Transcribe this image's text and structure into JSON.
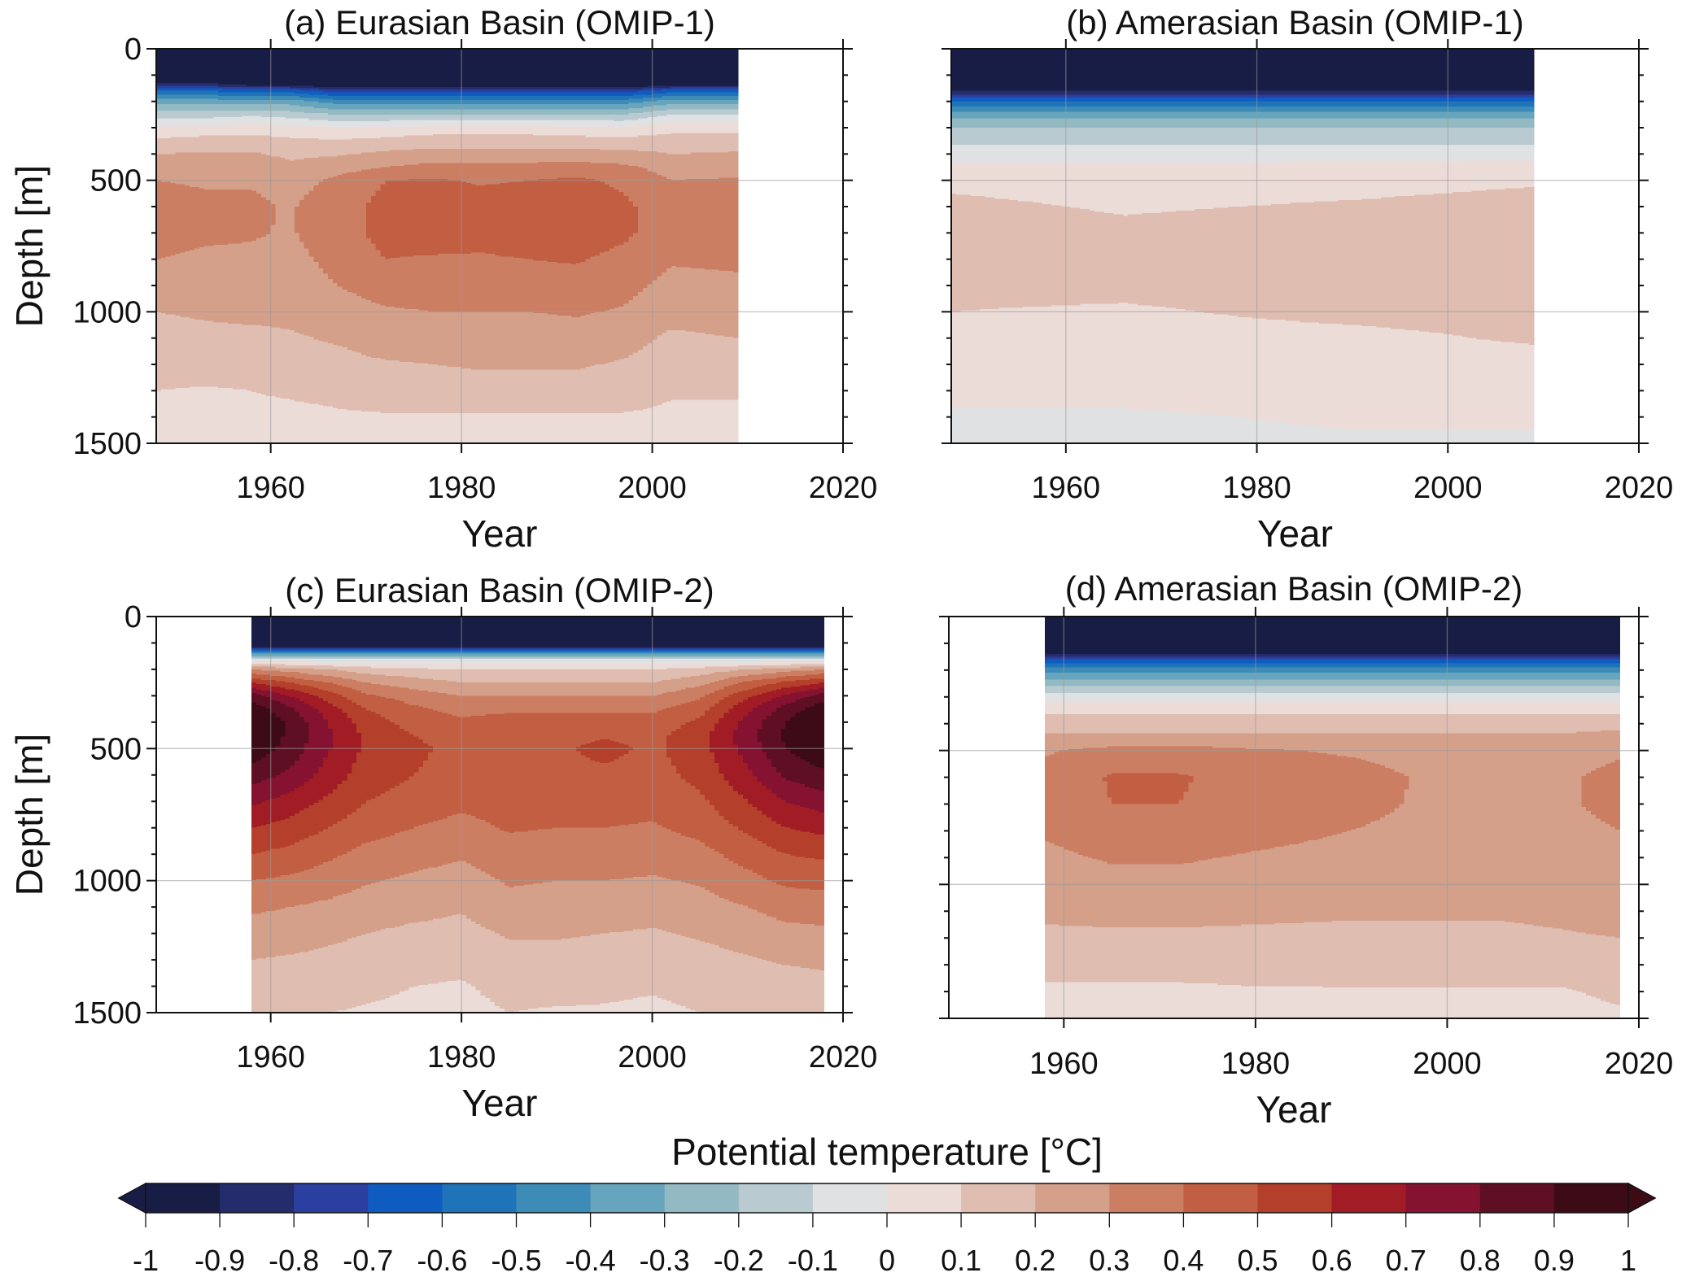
{
  "colorbar": {
    "label": "Potential temperature [°C]",
    "levels": [
      -1,
      -0.9,
      -0.8,
      -0.7,
      -0.6,
      -0.5,
      -0.4,
      -0.3,
      -0.2,
      -0.1,
      0,
      0.1,
      0.2,
      0.3,
      0.4,
      0.5,
      0.6,
      0.7,
      0.8,
      0.9,
      1
    ],
    "tick_labels": [
      "-1",
      "-0.9",
      "-0.8",
      "-0.7",
      "-0.6",
      "-0.5",
      "-0.4",
      "-0.3",
      "-0.2",
      "-0.1",
      "0",
      "0.1",
      "0.2",
      "0.3",
      "0.4",
      "0.5",
      "0.6",
      "0.7",
      "0.8",
      "0.9",
      "1"
    ],
    "colors": [
      "#181d45",
      "#242c6b",
      "#2b3fa0",
      "#0f5cc0",
      "#1f73b9",
      "#3d8cb8",
      "#66a5bd",
      "#93b9c3",
      "#b9cbd1",
      "#e0e1e3",
      "#ebdcd8",
      "#dfbdb1",
      "#d5a08a",
      "#cc7e63",
      "#c25f43",
      "#b43f2a",
      "#a11c25",
      "#841230",
      "#5f0f23",
      "#3d0b15"
    ],
    "extend": "both"
  },
  "chart_data": [
    {
      "type": "heatmap",
      "title": "(a) Eurasian Basin (OMIP-1)",
      "xlabel": "Year",
      "ylabel": "Depth [m]",
      "xlim": [
        1948,
        2020
      ],
      "ylim": [
        1500,
        0
      ],
      "xticks": [
        "1960",
        "1980",
        "2000",
        "2020"
      ],
      "yticks": [
        "0",
        "500",
        "1000",
        "1500"
      ],
      "grid": true,
      "depths": [
        0,
        50,
        100,
        130,
        160,
        200,
        250,
        300,
        350,
        400,
        450,
        500,
        600,
        700,
        800,
        900,
        1000,
        1100,
        1200,
        1300,
        1400,
        1500
      ],
      "years": [
        1948,
        1953,
        1958,
        1962,
        1967,
        1972,
        1977,
        1982,
        1987,
        1992,
        1997,
        2002,
        2009
      ],
      "values": [
        [
          -1.6,
          -1.6,
          -1.3,
          -0.9,
          -0.6,
          -0.35,
          -0.15,
          0.02,
          0.12,
          0.2,
          0.25,
          0.3,
          0.34,
          0.34,
          0.3,
          0.26,
          0.2,
          0.17,
          0.14,
          0.1,
          0.08,
          0.06
        ],
        [
          -1.6,
          -1.6,
          -1.3,
          -0.9,
          -0.6,
          -0.35,
          -0.15,
          0.03,
          0.14,
          0.21,
          0.26,
          0.29,
          0.32,
          0.32,
          0.28,
          0.25,
          0.21,
          0.18,
          0.15,
          0.09,
          0.08,
          0.06
        ],
        [
          -1.6,
          -1.6,
          -1.4,
          -1.0,
          -0.65,
          -0.35,
          -0.12,
          0.05,
          0.14,
          0.21,
          0.26,
          0.29,
          0.32,
          0.31,
          0.28,
          0.25,
          0.22,
          0.18,
          0.14,
          0.1,
          0.08,
          0.06
        ],
        [
          -1.6,
          -1.6,
          -1.4,
          -1.0,
          -0.65,
          -0.35,
          -0.15,
          0.04,
          0.12,
          0.18,
          0.22,
          0.26,
          0.29,
          0.29,
          0.27,
          0.25,
          0.22,
          0.19,
          0.15,
          0.11,
          0.08,
          0.06
        ],
        [
          -1.6,
          -1.6,
          -1.5,
          -1.1,
          -0.75,
          -0.45,
          -0.2,
          0.0,
          0.11,
          0.19,
          0.26,
          0.32,
          0.36,
          0.36,
          0.33,
          0.3,
          0.26,
          0.21,
          0.17,
          0.12,
          0.09,
          0.07
        ],
        [
          -1.6,
          -1.6,
          -1.5,
          -1.1,
          -0.75,
          -0.45,
          -0.2,
          0.02,
          0.13,
          0.22,
          0.3,
          0.4,
          0.43,
          0.43,
          0.4,
          0.34,
          0.29,
          0.25,
          0.19,
          0.15,
          0.09,
          0.07
        ],
        [
          -1.6,
          -1.6,
          -1.5,
          -1.1,
          -0.75,
          -0.45,
          -0.2,
          0.04,
          0.15,
          0.24,
          0.33,
          0.41,
          0.45,
          0.45,
          0.39,
          0.34,
          0.3,
          0.25,
          0.2,
          0.16,
          0.09,
          0.07
        ],
        [
          -1.6,
          -1.6,
          -1.5,
          -1.1,
          -0.75,
          -0.45,
          -0.2,
          0.04,
          0.15,
          0.24,
          0.33,
          0.39,
          0.44,
          0.43,
          0.39,
          0.34,
          0.3,
          0.25,
          0.21,
          0.16,
          0.09,
          0.07
        ],
        [
          -1.6,
          -1.6,
          -1.5,
          -1.1,
          -0.75,
          -0.45,
          -0.2,
          0.04,
          0.15,
          0.24,
          0.33,
          0.4,
          0.45,
          0.45,
          0.4,
          0.35,
          0.3,
          0.25,
          0.21,
          0.16,
          0.09,
          0.07
        ],
        [
          -1.6,
          -1.6,
          -1.5,
          -1.1,
          -0.75,
          -0.45,
          -0.2,
          0.03,
          0.14,
          0.24,
          0.34,
          0.42,
          0.46,
          0.46,
          0.41,
          0.36,
          0.31,
          0.26,
          0.21,
          0.16,
          0.09,
          0.07
        ],
        [
          -1.6,
          -1.6,
          -1.5,
          -1.1,
          -0.75,
          -0.45,
          -0.2,
          0.02,
          0.13,
          0.23,
          0.32,
          0.38,
          0.42,
          0.42,
          0.37,
          0.33,
          0.29,
          0.24,
          0.19,
          0.15,
          0.09,
          0.07
        ],
        [
          -1.6,
          -1.6,
          -1.4,
          -1.0,
          -0.65,
          -0.35,
          -0.1,
          0.06,
          0.15,
          0.2,
          0.26,
          0.3,
          0.34,
          0.34,
          0.31,
          0.27,
          0.24,
          0.18,
          0.15,
          0.11,
          0.08,
          0.06
        ],
        [
          -1.6,
          -1.6,
          -1.4,
          -1.0,
          -0.65,
          -0.35,
          -0.1,
          0.06,
          0.15,
          0.21,
          0.26,
          0.31,
          0.35,
          0.35,
          0.32,
          0.28,
          0.25,
          0.2,
          0.15,
          0.11,
          0.08,
          0.06
        ]
      ]
    },
    {
      "type": "heatmap",
      "title": "(b) Amerasian Basin (OMIP-1)",
      "xlabel": "Year",
      "ylabel": "",
      "xlim": [
        1948,
        2020
      ],
      "ylim": [
        1500,
        0
      ],
      "xticks": [
        "1960",
        "1980",
        "2000",
        "2020"
      ],
      "yticks": [],
      "grid": true,
      "depths": [
        0,
        50,
        100,
        130,
        160,
        200,
        250,
        300,
        350,
        400,
        450,
        500,
        600,
        700,
        800,
        900,
        1000,
        1100,
        1200,
        1300,
        1400,
        1500
      ],
      "years": [
        1948,
        1966,
        1990,
        2009
      ],
      "values": [
        [
          -1.6,
          -1.6,
          -1.5,
          -1.2,
          -0.9,
          -0.6,
          -0.35,
          -0.2,
          -0.12,
          -0.05,
          0.02,
          0.08,
          0.12,
          0.15,
          0.14,
          0.12,
          0.1,
          0.08,
          0.05,
          0.02,
          -0.01,
          -0.03
        ],
        [
          -1.6,
          -1.6,
          -1.5,
          -1.2,
          -0.9,
          -0.6,
          -0.35,
          -0.2,
          -0.12,
          -0.05,
          0.02,
          0.06,
          0.09,
          0.12,
          0.13,
          0.12,
          0.09,
          0.07,
          0.05,
          0.02,
          -0.01,
          -0.02
        ],
        [
          -1.6,
          -1.6,
          -1.5,
          -1.2,
          -0.9,
          -0.6,
          -0.35,
          -0.2,
          -0.12,
          -0.05,
          0.03,
          0.07,
          0.11,
          0.14,
          0.15,
          0.13,
          0.12,
          0.08,
          0.06,
          0.03,
          0.01,
          -0.01
        ],
        [
          -1.6,
          -1.6,
          -1.5,
          -1.2,
          -0.9,
          -0.6,
          -0.35,
          -0.2,
          -0.12,
          -0.04,
          0.04,
          0.09,
          0.13,
          0.16,
          0.16,
          0.15,
          0.13,
          0.11,
          0.07,
          0.04,
          0.01,
          -0.01
        ]
      ]
    },
    {
      "type": "heatmap",
      "title": "(c) Eurasian Basin (OMIP-2)",
      "xlabel": "Year",
      "ylabel": "Depth [m]",
      "xlim": [
        1948,
        2020
      ],
      "ylim": [
        1500,
        0
      ],
      "xticks": [
        "1960",
        "1980",
        "2000",
        "2020"
      ],
      "yticks": [
        "0",
        "500",
        "1000",
        "1500"
      ],
      "grid": true,
      "depths": [
        0,
        50,
        100,
        130,
        160,
        200,
        250,
        300,
        350,
        400,
        450,
        500,
        600,
        700,
        800,
        900,
        1000,
        1100,
        1200,
        1300,
        1400,
        1500
      ],
      "years": [
        1958,
        1962,
        1966,
        1970,
        1975,
        1980,
        1985,
        1990,
        1995,
        2000,
        2005,
        2010,
        2014,
        2018
      ],
      "values": [
        [
          -1.6,
          -1.6,
          -1.2,
          -0.6,
          -0.1,
          0.3,
          0.6,
          0.85,
          0.97,
          1.02,
          1.0,
          0.97,
          0.85,
          0.72,
          0.6,
          0.5,
          0.4,
          0.32,
          0.25,
          0.2,
          0.16,
          0.12
        ],
        [
          -1.6,
          -1.6,
          -1.2,
          -0.6,
          -0.1,
          0.25,
          0.5,
          0.7,
          0.82,
          0.88,
          0.88,
          0.86,
          0.78,
          0.66,
          0.56,
          0.47,
          0.38,
          0.3,
          0.24,
          0.19,
          0.15,
          0.11
        ],
        [
          -1.6,
          -1.6,
          -1.2,
          -0.6,
          -0.1,
          0.2,
          0.4,
          0.55,
          0.65,
          0.7,
          0.72,
          0.71,
          0.66,
          0.58,
          0.5,
          0.42,
          0.35,
          0.28,
          0.22,
          0.18,
          0.14,
          0.1
        ],
        [
          -1.6,
          -1.6,
          -1.2,
          -0.6,
          -0.1,
          0.15,
          0.3,
          0.42,
          0.5,
          0.55,
          0.58,
          0.58,
          0.55,
          0.5,
          0.44,
          0.37,
          0.31,
          0.25,
          0.2,
          0.16,
          0.12,
          0.09
        ],
        [
          -1.6,
          -1.6,
          -1.2,
          -0.6,
          -0.1,
          0.12,
          0.25,
          0.35,
          0.42,
          0.46,
          0.5,
          0.52,
          0.5,
          0.46,
          0.4,
          0.34,
          0.28,
          0.23,
          0.18,
          0.14,
          0.1,
          0.08
        ],
        [
          -1.6,
          -1.6,
          -1.2,
          -0.6,
          -0.1,
          0.1,
          0.2,
          0.3,
          0.37,
          0.42,
          0.46,
          0.47,
          0.46,
          0.42,
          0.37,
          0.31,
          0.26,
          0.21,
          0.17,
          0.13,
          0.09,
          0.07
        ],
        [
          -1.6,
          -1.6,
          -1.2,
          -0.6,
          -0.1,
          0.1,
          0.2,
          0.3,
          0.38,
          0.44,
          0.48,
          0.48,
          0.47,
          0.44,
          0.41,
          0.36,
          0.31,
          0.27,
          0.21,
          0.17,
          0.13,
          0.1
        ],
        [
          -1.6,
          -1.6,
          -1.2,
          -0.6,
          -0.1,
          0.1,
          0.2,
          0.3,
          0.38,
          0.44,
          0.47,
          0.48,
          0.47,
          0.44,
          0.4,
          0.35,
          0.3,
          0.26,
          0.21,
          0.17,
          0.13,
          0.09
        ],
        [
          -1.6,
          -1.6,
          -1.2,
          -0.6,
          -0.1,
          0.1,
          0.2,
          0.3,
          0.38,
          0.45,
          0.49,
          0.53,
          0.48,
          0.44,
          0.4,
          0.35,
          0.3,
          0.25,
          0.2,
          0.16,
          0.12,
          0.09
        ],
        [
          -1.6,
          -1.6,
          -1.2,
          -0.6,
          -0.1,
          0.1,
          0.2,
          0.3,
          0.38,
          0.44,
          0.47,
          0.48,
          0.46,
          0.43,
          0.39,
          0.34,
          0.29,
          0.24,
          0.19,
          0.15,
          0.11,
          0.08
        ],
        [
          -1.6,
          -1.6,
          -1.2,
          -0.6,
          -0.1,
          0.14,
          0.27,
          0.38,
          0.46,
          0.52,
          0.56,
          0.56,
          0.53,
          0.48,
          0.43,
          0.37,
          0.31,
          0.26,
          0.21,
          0.17,
          0.13,
          0.1
        ],
        [
          -1.6,
          -1.6,
          -1.2,
          -0.6,
          -0.1,
          0.2,
          0.42,
          0.58,
          0.68,
          0.74,
          0.76,
          0.74,
          0.68,
          0.6,
          0.52,
          0.44,
          0.37,
          0.3,
          0.24,
          0.19,
          0.15,
          0.11
        ],
        [
          -1.6,
          -1.6,
          -1.2,
          -0.6,
          -0.1,
          0.25,
          0.52,
          0.72,
          0.84,
          0.9,
          0.92,
          0.9,
          0.82,
          0.7,
          0.6,
          0.5,
          0.42,
          0.34,
          0.27,
          0.21,
          0.16,
          0.12
        ],
        [
          -1.6,
          -1.6,
          -1.2,
          -0.6,
          -0.1,
          0.3,
          0.6,
          0.85,
          0.97,
          1.02,
          1.02,
          0.98,
          0.88,
          0.75,
          0.63,
          0.52,
          0.43,
          0.35,
          0.28,
          0.22,
          0.17,
          0.13
        ]
      ]
    },
    {
      "type": "heatmap",
      "title": "(d) Amerasian Basin (OMIP-2)",
      "xlabel": "Year",
      "ylabel": "",
      "xlim": [
        1948,
        2020
      ],
      "ylim": [
        1500,
        0
      ],
      "xticks": [
        "1960",
        "1980",
        "2000",
        "2020"
      ],
      "yticks": [],
      "grid": true,
      "depths": [
        0,
        50,
        100,
        130,
        160,
        200,
        250,
        300,
        350,
        400,
        450,
        500,
        600,
        700,
        800,
        900,
        1000,
        1100,
        1200,
        1300,
        1400,
        1500
      ],
      "years": [
        1958,
        1965,
        1972,
        1980,
        1990,
        1998,
        2005,
        2012,
        2018
      ],
      "values": [
        [
          -1.6,
          -1.6,
          -1.4,
          -1.0,
          -0.7,
          -0.45,
          -0.25,
          -0.05,
          0.08,
          0.15,
          0.22,
          0.29,
          0.33,
          0.33,
          0.31,
          0.28,
          0.25,
          0.22,
          0.18,
          0.14,
          0.08,
          0.06
        ],
        [
          -1.6,
          -1.6,
          -1.4,
          -1.0,
          -0.7,
          -0.45,
          -0.25,
          -0.05,
          0.08,
          0.15,
          0.22,
          0.33,
          0.41,
          0.4,
          0.35,
          0.31,
          0.27,
          0.23,
          0.18,
          0.14,
          0.08,
          0.06
        ],
        [
          -1.6,
          -1.6,
          -1.4,
          -1.0,
          -0.7,
          -0.45,
          -0.25,
          -0.05,
          0.08,
          0.15,
          0.22,
          0.34,
          0.41,
          0.4,
          0.36,
          0.31,
          0.27,
          0.23,
          0.18,
          0.14,
          0.08,
          0.06
        ],
        [
          -1.6,
          -1.6,
          -1.4,
          -1.0,
          -0.7,
          -0.45,
          -0.25,
          -0.05,
          0.08,
          0.15,
          0.22,
          0.31,
          0.36,
          0.35,
          0.33,
          0.29,
          0.26,
          0.22,
          0.18,
          0.14,
          0.09,
          0.06
        ],
        [
          -1.6,
          -1.6,
          -1.4,
          -1.0,
          -0.7,
          -0.45,
          -0.25,
          -0.05,
          0.08,
          0.15,
          0.22,
          0.29,
          0.33,
          0.32,
          0.3,
          0.27,
          0.25,
          0.21,
          0.18,
          0.15,
          0.09,
          0.07
        ],
        [
          -1.6,
          -1.6,
          -1.4,
          -1.0,
          -0.7,
          -0.45,
          -0.25,
          -0.05,
          0.08,
          0.15,
          0.22,
          0.27,
          0.29,
          0.29,
          0.28,
          0.26,
          0.24,
          0.21,
          0.18,
          0.15,
          0.09,
          0.07
        ],
        [
          -1.6,
          -1.6,
          -1.4,
          -1.0,
          -0.7,
          -0.45,
          -0.25,
          -0.05,
          0.08,
          0.15,
          0.22,
          0.26,
          0.28,
          0.28,
          0.27,
          0.26,
          0.24,
          0.21,
          0.18,
          0.15,
          0.09,
          0.07
        ],
        [
          -1.6,
          -1.6,
          -1.4,
          -1.0,
          -0.7,
          -0.45,
          -0.25,
          -0.05,
          0.08,
          0.15,
          0.22,
          0.27,
          0.29,
          0.29,
          0.28,
          0.27,
          0.25,
          0.22,
          0.19,
          0.15,
          0.09,
          0.07
        ],
        [
          -1.6,
          -1.6,
          -1.4,
          -1.0,
          -0.7,
          -0.45,
          -0.25,
          -0.05,
          0.08,
          0.15,
          0.25,
          0.29,
          0.32,
          0.32,
          0.3,
          0.28,
          0.26,
          0.24,
          0.2,
          0.16,
          0.12,
          0.08
        ]
      ]
    }
  ]
}
